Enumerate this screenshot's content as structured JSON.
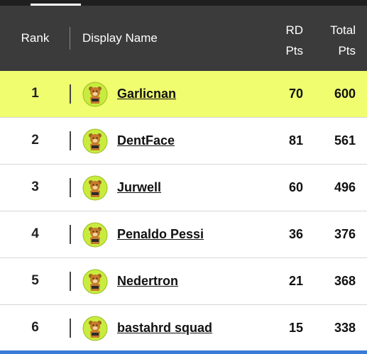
{
  "table": {
    "header": [
      "Rank",
      "Display Name",
      "RD Pts",
      "Total Pts"
    ],
    "rows": [
      [
        1,
        "Garlicnan",
        70,
        600
      ],
      [
        2,
        "DentFace",
        81,
        561
      ],
      [
        3,
        "Jurwell",
        60,
        496
      ],
      [
        4,
        "Penaldo Pessi",
        36,
        376
      ],
      [
        5,
        "Nedertron",
        21,
        368
      ],
      [
        6,
        "bastahrd squad",
        15,
        338
      ]
    ]
  }
}
